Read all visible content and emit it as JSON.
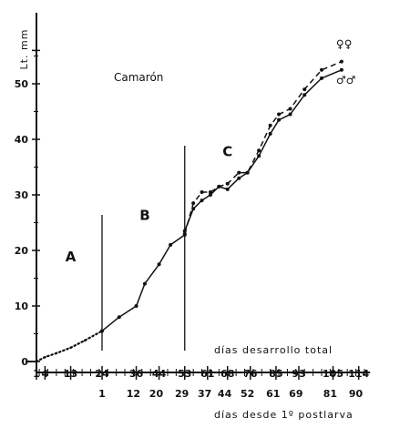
{
  "chart_data": {
    "type": "line",
    "title": "Camarón",
    "ylabel": "Lt. mm",
    "xlabel_top": "días desarrollo total",
    "xlabel_bottom": "días desde 1º postlarva",
    "ylim": [
      0,
      57
    ],
    "xlim": [
      0,
      118
    ],
    "y_ticks": [
      0,
      10,
      20,
      30,
      40,
      50
    ],
    "x_ticks_top": [
      1,
      4,
      13,
      24,
      36,
      44,
      53,
      61,
      68,
      76,
      85,
      93,
      105,
      114
    ],
    "x_ticks_bottom_values": [
      1,
      12,
      20,
      29,
      37,
      44,
      52,
      61,
      69,
      81,
      90
    ],
    "x_ticks_bottom_positions": [
      24,
      35,
      43,
      52,
      60,
      67,
      75,
      84,
      92,
      104,
      113
    ],
    "phase_labels": [
      {
        "label": "A",
        "x": 13,
        "y": 18
      },
      {
        "label": "B",
        "x": 39,
        "y": 25.5
      },
      {
        "label": "C",
        "x": 68,
        "y": 37
      }
    ],
    "phase_dividers": [
      24,
      53
    ],
    "series": [
      {
        "name": "♀♀",
        "style": "dashed",
        "points": [
          [
            53,
            23
          ],
          [
            56,
            28.5
          ],
          [
            59,
            30.5
          ],
          [
            62,
            30.5
          ],
          [
            65,
            31.5
          ],
          [
            68,
            32
          ],
          [
            72,
            34
          ],
          [
            75,
            34
          ],
          [
            79,
            38
          ],
          [
            83,
            42.5
          ],
          [
            86,
            44.5
          ],
          [
            90,
            45.5
          ],
          [
            95,
            49
          ],
          [
            101,
            52.5
          ],
          [
            108,
            54
          ]
        ]
      },
      {
        "name": "♂♂",
        "style": "solid",
        "points": [
          [
            53,
            23.5
          ],
          [
            56,
            27.5
          ],
          [
            59,
            29
          ],
          [
            62,
            30
          ],
          [
            65,
            31.5
          ],
          [
            68,
            31
          ],
          [
            72,
            33
          ],
          [
            75,
            34
          ],
          [
            79,
            37
          ],
          [
            83,
            41
          ],
          [
            86,
            43.5
          ],
          [
            90,
            44.5
          ],
          [
            95,
            48
          ],
          [
            101,
            51
          ],
          [
            108,
            52.5
          ]
        ]
      },
      {
        "name": "",
        "style": "dotted",
        "points": [
          [
            1,
            0
          ],
          [
            4,
            0.8
          ],
          [
            8,
            1.5
          ],
          [
            13,
            2.5
          ],
          [
            18,
            3.8
          ],
          [
            24,
            5.5
          ]
        ]
      },
      {
        "name": "",
        "style": "solid",
        "points": [
          [
            24,
            5.5
          ],
          [
            30,
            8
          ],
          [
            36,
            10
          ],
          [
            39,
            14
          ],
          [
            44,
            17.5
          ],
          [
            48,
            21
          ],
          [
            53,
            22.8
          ]
        ]
      }
    ]
  }
}
